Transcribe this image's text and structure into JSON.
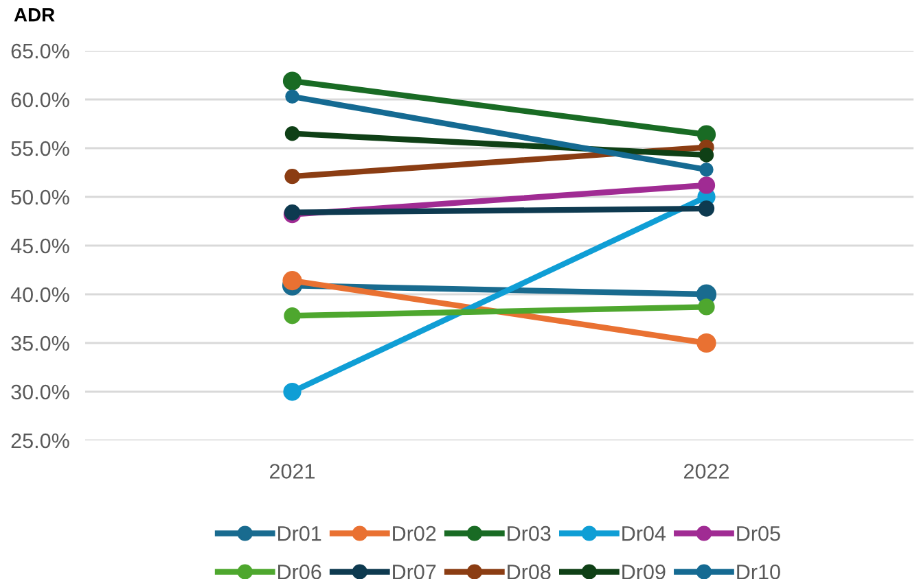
{
  "chart_data": {
    "type": "line",
    "ylabel": "ADR",
    "categories": [
      "2021",
      "2022"
    ],
    "ylim": [
      25,
      65
    ],
    "yticks": [
      {
        "value": 25,
        "label": "25.0%"
      },
      {
        "value": 30,
        "label": "30.0%"
      },
      {
        "value": 35,
        "label": "35.0%"
      },
      {
        "value": 40,
        "label": "40.0%"
      },
      {
        "value": 45,
        "label": "45.0%"
      },
      {
        "value": 50,
        "label": "50.0%"
      },
      {
        "value": 55,
        "label": "55.0%"
      },
      {
        "value": 60,
        "label": "60.0%"
      },
      {
        "value": 65,
        "label": "65.0%"
      }
    ],
    "grid": "y",
    "legend": "bottom",
    "marker": "circle",
    "line_style": "solid",
    "series": [
      {
        "name": "Dr01",
        "color": "#196b8f",
        "values": [
          40.9,
          40.0
        ]
      },
      {
        "name": "Dr02",
        "color": "#e97132",
        "values": [
          41.4,
          35.0
        ]
      },
      {
        "name": "Dr03",
        "color": "#196b24",
        "values": [
          61.9,
          56.4
        ]
      },
      {
        "name": "Dr04",
        "color": "#0f9ed5",
        "values": [
          30.0,
          50.0
        ]
      },
      {
        "name": "Dr05",
        "color": "#a02b93",
        "values": [
          48.2,
          51.2
        ]
      },
      {
        "name": "Dr06",
        "color": "#4ea72e",
        "values": [
          37.8,
          38.7
        ]
      },
      {
        "name": "Dr07",
        "color": "#0e3a50",
        "values": [
          48.4,
          48.8
        ]
      },
      {
        "name": "Dr08",
        "color": "#8b3d13",
        "values": [
          52.1,
          55.1
        ]
      },
      {
        "name": "Dr09",
        "color": "#0f4016",
        "values": [
          56.5,
          54.3
        ]
      },
      {
        "name": "Dr10",
        "color": "#156a92",
        "values": [
          60.3,
          52.8
        ]
      }
    ]
  }
}
